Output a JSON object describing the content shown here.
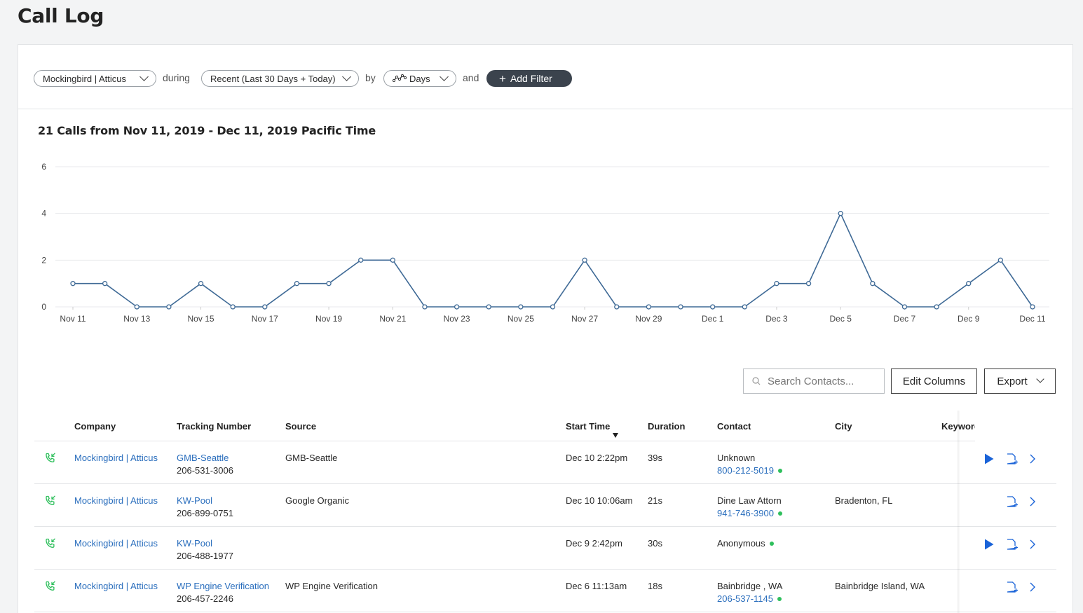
{
  "page": {
    "title": "Call Log"
  },
  "filters": {
    "account": "Mockingbird | Atticus",
    "during_label": "during",
    "range": "Recent (Last 30 Days + Today)",
    "by_label": "by",
    "granularity": "Days",
    "and_label": "and",
    "add_filter": "Add Filter"
  },
  "chart_data": {
    "type": "line",
    "title": "21 Calls from Nov 11, 2019 - Dec 11, 2019 Pacific Time",
    "x": [
      "Nov 11",
      "Nov 12",
      "Nov 13",
      "Nov 14",
      "Nov 15",
      "Nov 16",
      "Nov 17",
      "Nov 18",
      "Nov 19",
      "Nov 20",
      "Nov 21",
      "Nov 22",
      "Nov 23",
      "Nov 24",
      "Nov 25",
      "Nov 26",
      "Nov 27",
      "Nov 28",
      "Nov 29",
      "Nov 30",
      "Dec 1",
      "Dec 2",
      "Dec 3",
      "Dec 4",
      "Dec 5",
      "Dec 6",
      "Dec 7",
      "Dec 8",
      "Dec 9",
      "Dec 10",
      "Dec 11"
    ],
    "values": [
      1,
      1,
      0,
      0,
      1,
      0,
      0,
      1,
      1,
      2,
      2,
      0,
      0,
      0,
      0,
      0,
      2,
      0,
      0,
      0,
      0,
      0,
      1,
      1,
      4,
      1,
      0,
      0,
      1,
      2,
      0
    ],
    "x_tick_labels": [
      "Nov 11",
      "Nov 13",
      "Nov 15",
      "Nov 17",
      "Nov 19",
      "Nov 21",
      "Nov 23",
      "Nov 25",
      "Nov 27",
      "Nov 29",
      "Dec 1",
      "Dec 3",
      "Dec 5",
      "Dec 7",
      "Dec 9",
      "Dec 11"
    ],
    "y_ticks": [
      "0",
      "2",
      "4",
      "6"
    ],
    "ylim": [
      0,
      6
    ],
    "grid": true,
    "line_color": "#3f6a96"
  },
  "toolbar": {
    "search_placeholder": "Search Contacts...",
    "edit_columns": "Edit Columns",
    "export": "Export"
  },
  "table": {
    "columns": {
      "company": "Company",
      "tracking": "Tracking Number",
      "source": "Source",
      "start": "Start Time",
      "duration": "Duration",
      "contact": "Contact",
      "city": "City",
      "keyword": "Keyword"
    },
    "rows": [
      {
        "company": "Mockingbird | Atticus",
        "tracking_name": "GMB-Seattle",
        "tracking_number": "206-531-3006",
        "source": "GMB-Seattle",
        "start": "Dec 10 2:22pm",
        "duration": "39s",
        "contact_name": "Unknown",
        "contact_phone": "800-212-5019",
        "city": "",
        "has_recording": true
      },
      {
        "company": "Mockingbird | Atticus",
        "tracking_name": "KW-Pool",
        "tracking_number": "206-899-0751",
        "source": "Google Organic",
        "start": "Dec 10 10:06am",
        "duration": "21s",
        "contact_name": "Dine Law Attorn",
        "contact_phone": "941-746-3900",
        "city": "Bradenton, FL",
        "has_recording": false
      },
      {
        "company": "Mockingbird | Atticus",
        "tracking_name": "KW-Pool",
        "tracking_number": "206-488-1977",
        "source": "",
        "start": "Dec 9 2:42pm",
        "duration": "30s",
        "contact_name": "Anonymous",
        "contact_phone": "",
        "city": "",
        "has_recording": true
      },
      {
        "company": "Mockingbird | Atticus",
        "tracking_name": "WP Engine Verification",
        "tracking_number": "206-457-2246",
        "source": "WP Engine Verification",
        "start": "Dec 6 11:13am",
        "duration": "18s",
        "contact_name": "Bainbridge , WA",
        "contact_phone": "206-537-1145",
        "city": "Bainbridge Island, WA",
        "has_recording": false
      }
    ]
  },
  "icons": {
    "inbound_call": "phone-incoming-icon",
    "play": "play-icon",
    "note": "add-note-icon",
    "chevron": "chevron-right-icon",
    "search": "search-icon",
    "chart_type": "line-chart-icon"
  },
  "colors": {
    "link": "#2a6ebd",
    "call_icon": "#2ebf5c",
    "play": "#1a63d8",
    "add_filter_bg": "#3b434d"
  }
}
